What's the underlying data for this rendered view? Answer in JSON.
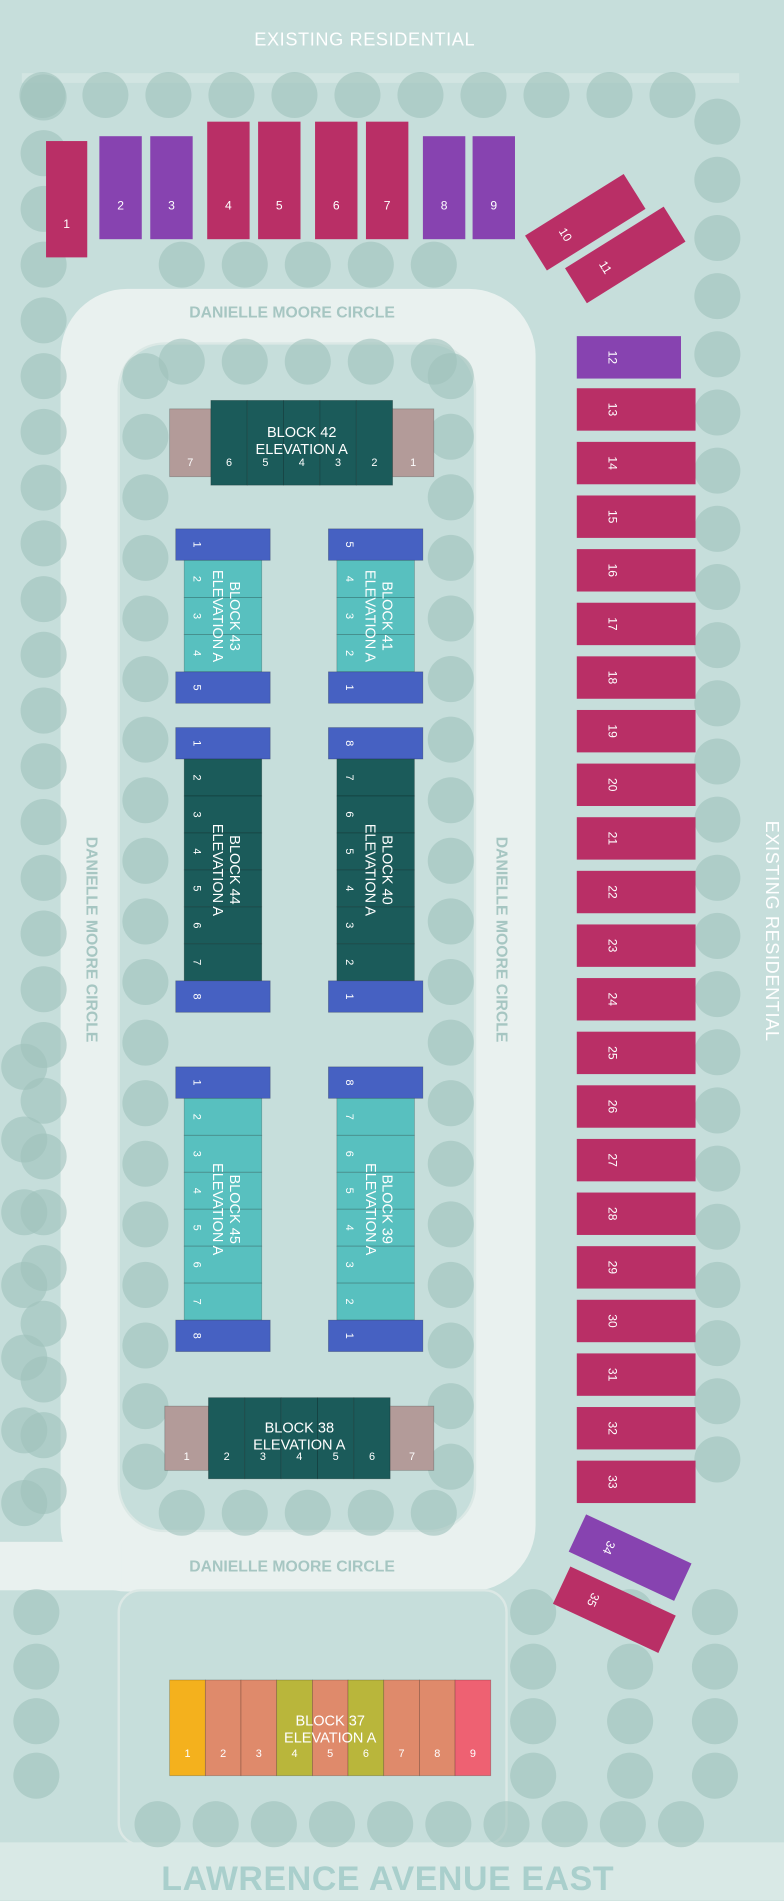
{
  "labels": {
    "top": "EXISTING RESIDENTIAL",
    "right": "EXISTING RESIDENTIAL",
    "street_top": "DANIELLE MOORE CIRCLE",
    "street_bottom": "DANIELLE MOORE CIRCLE",
    "street_left": "DANIELLE MOORE CIRCLE",
    "street_right": "DANIELLE MOORE CIRCLE",
    "avenue": "LAWRENCE AVENUE EAST"
  },
  "lots": [
    {
      "label": "1",
      "color": "#b92f66"
    },
    {
      "label": "2",
      "color": "#8743b0"
    },
    {
      "label": "3",
      "color": "#8743b0"
    },
    {
      "label": "4",
      "color": "#b92f66"
    },
    {
      "label": "5",
      "color": "#b92f66"
    },
    {
      "label": "6",
      "color": "#b92f66"
    },
    {
      "label": "7",
      "color": "#b92f66"
    },
    {
      "label": "8",
      "color": "#8743b0"
    },
    {
      "label": "9",
      "color": "#8743b0"
    },
    {
      "label": "10",
      "color": "#b92f66"
    },
    {
      "label": "11",
      "color": "#b92f66"
    },
    {
      "label": "12",
      "color": "#8743b0"
    },
    {
      "label": "13",
      "color": "#b92f66"
    },
    {
      "label": "14",
      "color": "#b92f66"
    },
    {
      "label": "15",
      "color": "#b92f66"
    },
    {
      "label": "16",
      "color": "#b92f66"
    },
    {
      "label": "17",
      "color": "#b92f66"
    },
    {
      "label": "18",
      "color": "#b92f66"
    },
    {
      "label": "19",
      "color": "#b92f66"
    },
    {
      "label": "20",
      "color": "#b92f66"
    },
    {
      "label": "21",
      "color": "#b92f66"
    },
    {
      "label": "22",
      "color": "#b92f66"
    },
    {
      "label": "23",
      "color": "#b92f66"
    },
    {
      "label": "24",
      "color": "#b92f66"
    },
    {
      "label": "25",
      "color": "#b92f66"
    },
    {
      "label": "26",
      "color": "#b92f66"
    },
    {
      "label": "27",
      "color": "#b92f66"
    },
    {
      "label": "28",
      "color": "#b92f66"
    },
    {
      "label": "29",
      "color": "#b92f66"
    },
    {
      "label": "30",
      "color": "#b92f66"
    },
    {
      "label": "31",
      "color": "#b92f66"
    },
    {
      "label": "32",
      "color": "#b92f66"
    },
    {
      "label": "33",
      "color": "#b92f66"
    },
    {
      "label": "34",
      "color": "#8743b0"
    },
    {
      "label": "35",
      "color": "#b92f66"
    }
  ],
  "blocks": [
    {
      "name": "BLOCK 42",
      "elevation": "ELEVATION A",
      "units": [
        "7",
        "6",
        "5",
        "4",
        "3",
        "2",
        "1"
      ],
      "colors": [
        "#b39b99",
        "#1b5b5a",
        "#1b5b5a",
        "#1b5b5a",
        "#1b5b5a",
        "#1b5b5a",
        "#b39b99"
      ]
    },
    {
      "name": "BLOCK 43",
      "elevation": "ELEVATION A",
      "units": [
        "1",
        "2",
        "3",
        "4",
        "5"
      ],
      "colors": [
        "#4661c2",
        "#58c0bf",
        "#58c0bf",
        "#58c0bf",
        "#4661c2"
      ]
    },
    {
      "name": "BLOCK 41",
      "elevation": "ELEVATION A",
      "units": [
        "5",
        "4",
        "3",
        "2",
        "1"
      ],
      "colors": [
        "#4661c2",
        "#58c0bf",
        "#58c0bf",
        "#58c0bf",
        "#4661c2"
      ]
    },
    {
      "name": "BLOCK 44",
      "elevation": "ELEVATION A",
      "units": [
        "1",
        "2",
        "3",
        "4",
        "5",
        "6",
        "7",
        "8"
      ],
      "colors": [
        "#4661c2",
        "#1b5b5a",
        "#1b5b5a",
        "#1b5b5a",
        "#1b5b5a",
        "#1b5b5a",
        "#1b5b5a",
        "#4661c2"
      ]
    },
    {
      "name": "BLOCK 40",
      "elevation": "ELEVATION A",
      "units": [
        "8",
        "7",
        "6",
        "5",
        "4",
        "3",
        "2",
        "1"
      ],
      "colors": [
        "#4661c2",
        "#1b5b5a",
        "#1b5b5a",
        "#1b5b5a",
        "#1b5b5a",
        "#1b5b5a",
        "#1b5b5a",
        "#4661c2"
      ]
    },
    {
      "name": "BLOCK 45",
      "elevation": "ELEVATION A",
      "units": [
        "1",
        "2",
        "3",
        "4",
        "5",
        "6",
        "7",
        "8"
      ],
      "colors": [
        "#4661c2",
        "#58c0bf",
        "#58c0bf",
        "#58c0bf",
        "#58c0bf",
        "#58c0bf",
        "#58c0bf",
        "#4661c2"
      ]
    },
    {
      "name": "BLOCK 39",
      "elevation": "ELEVATION A",
      "units": [
        "8",
        "7",
        "6",
        "5",
        "4",
        "3",
        "2",
        "1"
      ],
      "colors": [
        "#4661c2",
        "#58c0bf",
        "#58c0bf",
        "#58c0bf",
        "#58c0bf",
        "#58c0bf",
        "#58c0bf",
        "#4661c2"
      ]
    },
    {
      "name": "BLOCK 38",
      "elevation": "ELEVATION A",
      "units": [
        "1",
        "2",
        "3",
        "4",
        "5",
        "6",
        "7"
      ],
      "colors": [
        "#b39b99",
        "#1b5b5a",
        "#1b5b5a",
        "#1b5b5a",
        "#1b5b5a",
        "#1b5b5a",
        "#b39b99"
      ]
    },
    {
      "name": "BLOCK 37",
      "elevation": "ELEVATION A",
      "units": [
        "1",
        "2",
        "3",
        "4",
        "5",
        "6",
        "7",
        "8",
        "9"
      ],
      "colors": [
        "#f4b11d",
        "#df8a6b",
        "#df8a6b",
        "#b9b63b",
        "#df8a6b",
        "#b9b63b",
        "#df8a6b",
        "#df8a6b",
        "#ee6172"
      ]
    }
  ]
}
